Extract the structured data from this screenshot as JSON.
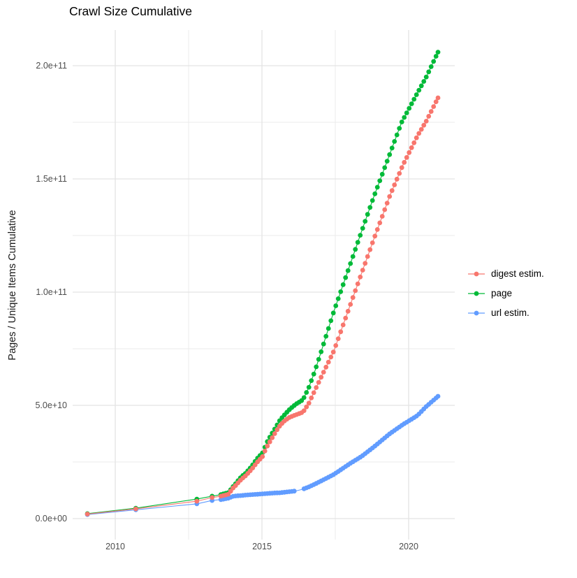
{
  "title": "Crawl Size Cumulative",
  "axes": {
    "y_label": "Pages / Unique Items Cumulative",
    "y_ticks": [
      {
        "label": "0.0e+00",
        "value": 0
      },
      {
        "label": "5.0e+10",
        "value": 50
      },
      {
        "label": "1.0e+11",
        "value": 100
      },
      {
        "label": "1.5e+11",
        "value": 150
      },
      {
        "label": "2.0e+11",
        "value": 200
      }
    ],
    "x_ticks": [
      {
        "label": "2010",
        "value": 2010
      },
      {
        "label": "2015",
        "value": 2015
      },
      {
        "label": "2020",
        "value": 2020
      }
    ],
    "x_minor": [
      2012.5,
      2017.5
    ],
    "y_minor": [
      25,
      75,
      125,
      175
    ]
  },
  "legend": {
    "items": [
      "digest estim.",
      "page",
      "url estim."
    ]
  },
  "chart_data": {
    "type": "line",
    "title": "Crawl Size Cumulative",
    "xlabel": "",
    "ylabel": "Pages / Unique Items Cumulative",
    "value_unit": "billions (1e9) of pages / unique items",
    "x_range": [
      2008.45,
      2021.6
    ],
    "y_range_e9": [
      -9,
      216
    ],
    "grid": true,
    "legend_position": "right",
    "colors": {
      "digest": "#F8766D",
      "page": "#00BA38",
      "url": "#619CFF",
      "grid_major": "#e3e3e3",
      "grid_minor": "#ebebeb",
      "tick_text": "#4d4d4d"
    },
    "series": [
      {
        "name": "digest estim.",
        "color": "#F8766D",
        "points": [
          [
            2009.05,
            2.0
          ],
          [
            2010.7,
            4.3
          ],
          [
            2012.78,
            7.7
          ],
          [
            2013.3,
            9.3
          ],
          [
            2013.6,
            9.9
          ],
          [
            2013.86,
            10.8
          ],
          [
            2014.0,
            13.3
          ],
          [
            2014.1,
            14.6
          ],
          [
            2014.2,
            16.0
          ],
          [
            2014.3,
            17.4
          ],
          [
            2014.45,
            19.0
          ],
          [
            2014.55,
            20.4
          ],
          [
            2014.65,
            21.8
          ],
          [
            2014.8,
            24.3
          ],
          [
            2014.9,
            25.9
          ],
          [
            2015.0,
            26.9
          ],
          [
            2015.1,
            29.8
          ],
          [
            2015.2,
            32.5
          ],
          [
            2015.3,
            34.6
          ],
          [
            2015.4,
            36.8
          ],
          [
            2015.5,
            38.9
          ],
          [
            2015.6,
            40.8
          ],
          [
            2015.7,
            42.3
          ],
          [
            2015.8,
            43.5
          ],
          [
            2015.95,
            44.8
          ],
          [
            2016.15,
            45.8
          ],
          [
            2016.4,
            47.0
          ],
          [
            2016.6,
            51.0
          ],
          [
            2016.8,
            56.5
          ],
          [
            2017.0,
            62.0
          ],
          [
            2017.45,
            74.0
          ],
          [
            2018.0,
            94.0
          ],
          [
            2018.4,
            108.5
          ],
          [
            2018.8,
            123.0
          ],
          [
            2019.36,
            142.6
          ],
          [
            2019.8,
            156.0
          ],
          [
            2020.3,
            169.0
          ],
          [
            2020.6,
            175.5
          ],
          [
            2021.0,
            185.8
          ]
        ]
      },
      {
        "name": "page",
        "color": "#00BA38",
        "points": [
          [
            2009.05,
            2.2
          ],
          [
            2010.7,
            4.6
          ],
          [
            2012.78,
            8.6
          ],
          [
            2013.3,
            9.9
          ],
          [
            2013.6,
            10.6
          ],
          [
            2013.86,
            11.5
          ],
          [
            2014.0,
            13.9
          ],
          [
            2014.1,
            15.4
          ],
          [
            2014.2,
            17.0
          ],
          [
            2014.3,
            18.5
          ],
          [
            2014.45,
            20.1
          ],
          [
            2014.55,
            21.6
          ],
          [
            2014.65,
            23.1
          ],
          [
            2014.8,
            25.9
          ],
          [
            2014.9,
            27.5
          ],
          [
            2015.0,
            28.5
          ],
          [
            2015.1,
            31.5
          ],
          [
            2015.2,
            34.5
          ],
          [
            2015.3,
            36.7
          ],
          [
            2015.4,
            38.8
          ],
          [
            2015.5,
            41.0
          ],
          [
            2015.6,
            43.2
          ],
          [
            2015.7,
            44.8
          ],
          [
            2015.8,
            46.3
          ],
          [
            2015.95,
            48.3
          ],
          [
            2016.15,
            50.5
          ],
          [
            2016.4,
            52.5
          ],
          [
            2016.6,
            58.0
          ],
          [
            2016.8,
            65.0
          ],
          [
            2017.0,
            73.0
          ],
          [
            2017.45,
            91.5
          ],
          [
            2018.0,
            112.0
          ],
          [
            2018.4,
            127.0
          ],
          [
            2018.8,
            141.7
          ],
          [
            2019.3,
            159.0
          ],
          [
            2019.76,
            175.0
          ],
          [
            2020.3,
            188.0
          ],
          [
            2020.6,
            195.0
          ],
          [
            2021.0,
            206.0
          ]
        ]
      },
      {
        "name": "url estim.",
        "color": "#619CFF",
        "gaps": [
          [
            2016.17,
            2016.38
          ]
        ],
        "points": [
          [
            2009.05,
            1.8
          ],
          [
            2010.7,
            3.9
          ],
          [
            2012.78,
            6.5
          ],
          [
            2013.3,
            8.0
          ],
          [
            2013.6,
            8.4
          ],
          [
            2013.86,
            9.0
          ],
          [
            2014.0,
            9.8
          ],
          [
            2014.1,
            10.0
          ],
          [
            2014.3,
            10.2
          ],
          [
            2014.55,
            10.5
          ],
          [
            2014.8,
            10.7
          ],
          [
            2015.0,
            10.9
          ],
          [
            2015.2,
            11.1
          ],
          [
            2015.4,
            11.3
          ],
          [
            2015.6,
            11.4
          ],
          [
            2015.8,
            11.7
          ],
          [
            2015.95,
            11.9
          ],
          [
            2016.15,
            12.2
          ],
          [
            2016.4,
            13.0
          ],
          [
            2016.5,
            13.5
          ],
          [
            2016.6,
            14.0
          ],
          [
            2016.8,
            15.2
          ],
          [
            2017.0,
            16.5
          ],
          [
            2017.45,
            19.5
          ],
          [
            2018.0,
            24.3
          ],
          [
            2018.4,
            27.5
          ],
          [
            2018.8,
            31.5
          ],
          [
            2019.36,
            37.5
          ],
          [
            2019.8,
            41.5
          ],
          [
            2020.3,
            45.5
          ],
          [
            2020.6,
            49.5
          ],
          [
            2021.0,
            54.0
          ]
        ]
      }
    ]
  }
}
